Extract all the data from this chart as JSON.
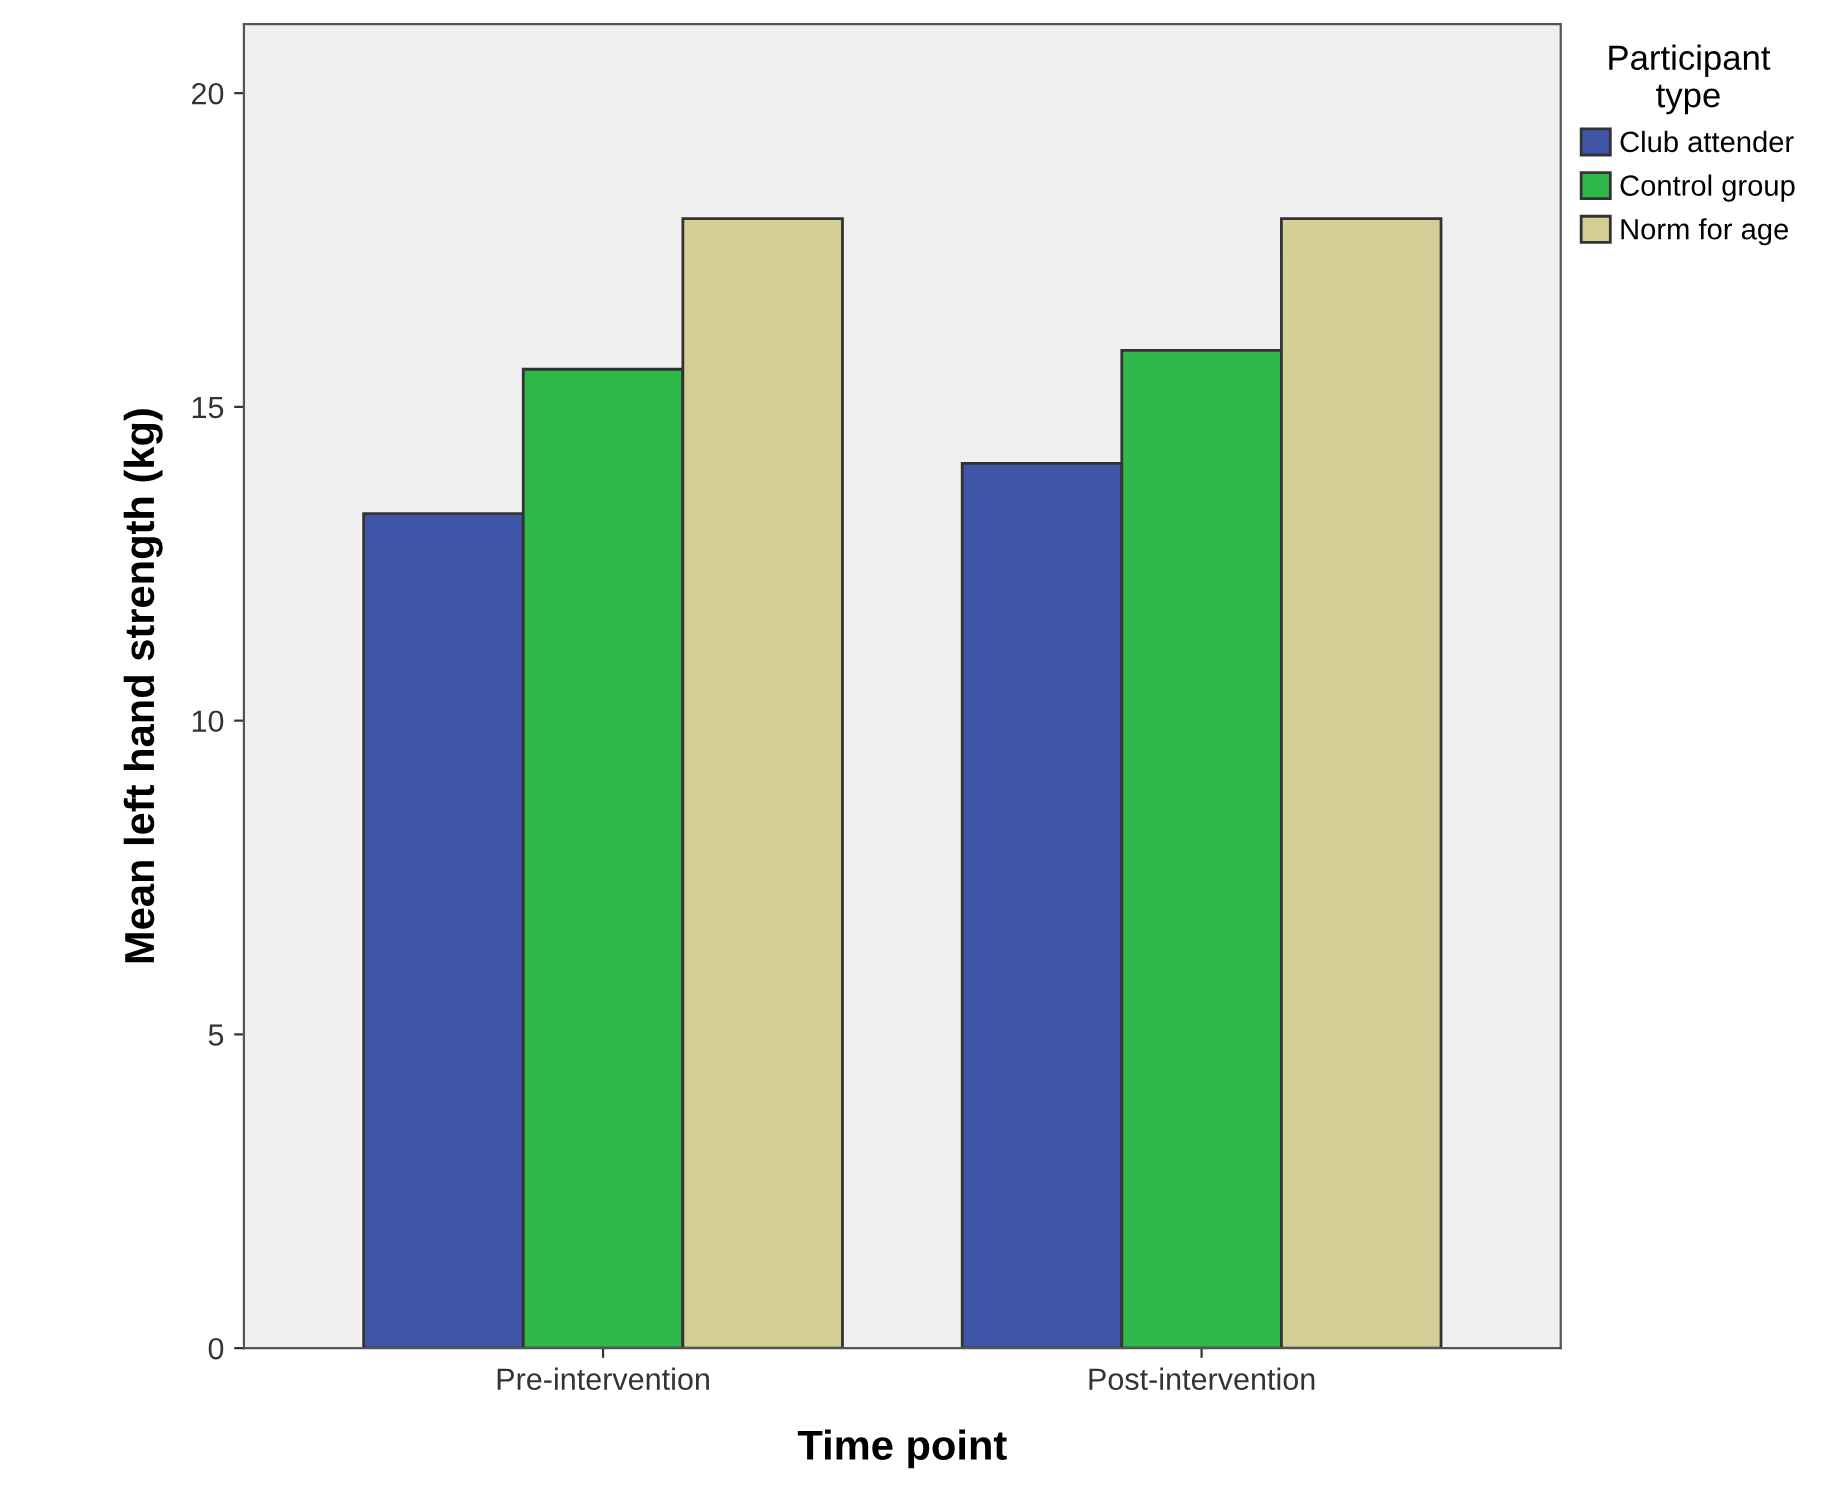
{
  "chart_data": {
    "type": "bar",
    "xlabel": "Time point",
    "ylabel": "Mean left hand strength (kg)",
    "legend_title": "Participant\ntype",
    "categories": [
      "Pre-intervention",
      "Post-intervention"
    ],
    "series": [
      {
        "name": "Club attender",
        "color": "#3f56a8",
        "values": [
          13.3,
          14.1
        ]
      },
      {
        "name": "Control group",
        "color": "#2fb84a",
        "values": [
          15.6,
          15.9
        ]
      },
      {
        "name": "Norm for age",
        "color": "#d3ce96",
        "values": [
          18.0,
          18.0
        ]
      }
    ],
    "ylim": [
      0,
      21.1
    ],
    "yticks": [
      0,
      5,
      10,
      15,
      20
    ],
    "grid": false,
    "legend": "top right"
  }
}
